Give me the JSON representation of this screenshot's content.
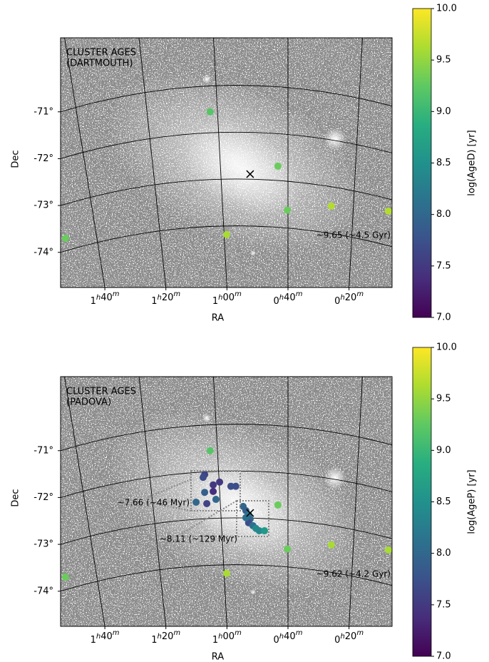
{
  "chart_data": [
    {
      "type": "scatter",
      "title": "CLUSTER AGES",
      "subtitle": "(DARTMOUTH)",
      "x_label": "RA",
      "y_label": "Dec",
      "xlim": [
        114.5,
        5.9
      ],
      "ylim": [
        -74.75,
        -69.42
      ],
      "xticks": [
        {
          "value": 100,
          "label": "1h40m"
        },
        {
          "value": 80,
          "label": "1h20m"
        },
        {
          "value": 60,
          "label": "1h00m"
        },
        {
          "value": 40,
          "label": "0h40m"
        },
        {
          "value": 20,
          "label": "0h20m"
        }
      ],
      "yticks": [
        {
          "value": -71,
          "label": "-71°"
        },
        {
          "value": -72,
          "label": "-72°"
        },
        {
          "value": -73,
          "label": "-73°"
        },
        {
          "value": -74,
          "label": "-74°"
        }
      ],
      "x": [
        112.9,
        65.5,
        43.3,
        40.2,
        25.8,
        7.1,
        60.1
      ],
      "y": [
        -73.7,
        -71.0,
        -72.16,
        -73.1,
        -73.01,
        -73.12,
        -73.62
      ],
      "color_values": [
        9.3,
        9.2,
        9.3,
        9.3,
        9.65,
        9.65,
        9.6
      ],
      "center": {
        "x": 52.4,
        "y": -72.33
      },
      "annotations": [
        "~9.65 (~4.5 Gyr)"
      ],
      "colorbar": {
        "label": "log(AgeD) [yr]",
        "colormap": "viridis",
        "clim": [
          7,
          10
        ],
        "ticks": [
          {
            "value": 7,
            "label": "7.0"
          },
          7.5,
          {
            "value": 8,
            "label": "8.0"
          },
          8.5,
          {
            "value": 9,
            "label": "9.0"
          },
          9.5,
          {
            "value": 10,
            "label": "10.0"
          }
        ]
      }
    },
    {
      "type": "scatter",
      "title": "CLUSTER AGES",
      "subtitle": "(PADOVA)",
      "x_label": "RA",
      "y_label": "Dec",
      "xlim": [
        114.5,
        5.9
      ],
      "ylim": [
        -74.75,
        -69.42
      ],
      "xticks": [
        {
          "value": 100,
          "label": "1h40m"
        },
        {
          "value": 80,
          "label": "1h20m"
        },
        {
          "value": 60,
          "label": "1h00m"
        },
        {
          "value": 40,
          "label": "0h40m"
        },
        {
          "value": 20,
          "label": "0h20m"
        }
      ],
      "yticks": [
        {
          "value": -71,
          "label": "-71°"
        },
        {
          "value": -72,
          "label": "-72°"
        },
        {
          "value": -73,
          "label": "-73°"
        },
        {
          "value": -74,
          "label": "-74°"
        }
      ],
      "x": [
        112.9,
        65.5,
        43.3,
        40.2,
        25.8,
        7.1,
        60.1,
        67.3,
        67.8,
        64.5,
        62.4,
        58.7,
        57.1,
        64.5,
        67.3,
        70.1,
        66.6,
        63.6,
        54.7,
        53.8,
        52.9,
        52.4,
        52.9,
        51.5,
        50.5,
        49.4,
        47.7,
        53.8
      ],
      "y": [
        -73.7,
        -71.0,
        -72.16,
        -73.1,
        -73.01,
        -73.12,
        -73.62,
        -71.51,
        -71.57,
        -71.73,
        -71.67,
        -71.76,
        -71.76,
        -71.87,
        -71.89,
        -72.1,
        -72.13,
        -72.04,
        -72.19,
        -72.28,
        -72.37,
        -72.46,
        -72.54,
        -72.6,
        -72.66,
        -72.71,
        -72.71,
        -72.43
      ],
      "color_values": [
        9.3,
        9.2,
        9.3,
        9.3,
        9.6,
        9.6,
        9.6,
        7.6,
        7.7,
        7.5,
        7.5,
        7.7,
        7.7,
        7.4,
        7.9,
        8.0,
        7.6,
        8.0,
        8.0,
        7.9,
        8.2,
        8.0,
        7.7,
        8.1,
        8.4,
        8.4,
        8.6,
        8.1
      ],
      "center": {
        "x": 52.4,
        "y": -72.33
      },
      "annotations": [
        "~7.66 (~46 Myr)",
        "~8.11 (~129 Myr)",
        "~9.62 (~4.2 Gyr)"
      ],
      "colorbar": {
        "label": "log(AgeP) [yr]",
        "colormap": "viridis",
        "clim": [
          7,
          10
        ],
        "ticks": [
          {
            "value": 7,
            "label": "7.0"
          },
          7.5,
          {
            "value": 8,
            "label": "8.0"
          },
          8.5,
          {
            "value": 9,
            "label": "9.0"
          },
          9.5,
          {
            "value": 10,
            "label": "10.0"
          }
        ]
      }
    }
  ]
}
